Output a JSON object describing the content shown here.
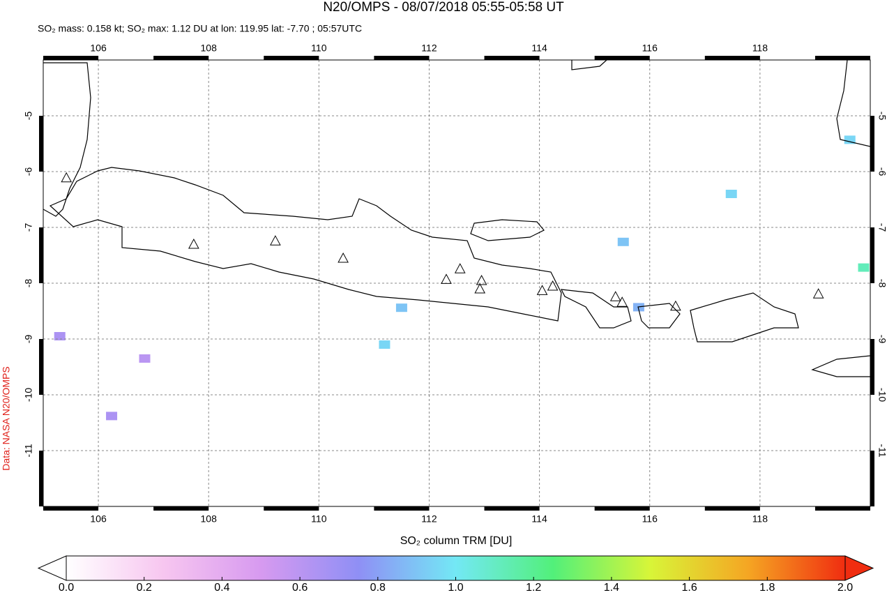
{
  "chart_data": {
    "type": "map",
    "title": "N20/OMPS - 08/07/2018 05:55-05:58 UT",
    "subtitle": "SO₂ mass: 0.158 kt; SO₂ max: 1.12 DU at lon: 119.95 lat: -7.70 ; 05:57UTC",
    "side_label": "Data: NASA N20/OMPS",
    "xlim": [
      105,
      120
    ],
    "ylim": [
      -12,
      -4
    ],
    "xticks": [
      106,
      108,
      110,
      112,
      114,
      116,
      118
    ],
    "yticks": [
      -5,
      -6,
      -7,
      -8,
      -9,
      -10,
      -11
    ],
    "grid": true,
    "volcanoes": [
      [
        105.42,
        -6.11
      ],
      [
        107.73,
        -7.3
      ],
      [
        109.21,
        -7.24
      ],
      [
        110.44,
        -7.55
      ],
      [
        112.31,
        -7.93
      ],
      [
        112.56,
        -7.74
      ],
      [
        112.95,
        -7.95
      ],
      [
        112.92,
        -8.1
      ],
      [
        114.05,
        -8.13
      ],
      [
        114.24,
        -8.05
      ],
      [
        115.38,
        -8.24
      ],
      [
        115.5,
        -8.34
      ],
      [
        116.47,
        -8.41
      ],
      [
        119.06,
        -8.19
      ]
    ],
    "pixels": {
      "lon": [
        119.63,
        117.48,
        115.52,
        119.88,
        111.5,
        111.19,
        115.8,
        105.3,
        106.84,
        106.24
      ],
      "lat": [
        -5.43,
        -6.4,
        -7.26,
        -7.72,
        -8.44,
        -9.1,
        -8.43,
        -8.95,
        -9.35,
        -10.38
      ],
      "values": [
        0.95,
        0.95,
        0.9,
        1.12,
        0.9,
        0.95,
        0.85,
        0.65,
        0.6,
        0.65
      ]
    },
    "colorbar": {
      "label": "SO₂ column TRM [DU]",
      "lim": [
        0,
        2
      ],
      "ticks": [
        {
          "value": 0,
          "label": "0.0"
        },
        0.2,
        0.4,
        0.6,
        0.8,
        {
          "value": 1,
          "label": "1.0"
        },
        1.2,
        1.4,
        1.6,
        1.8,
        {
          "value": 2,
          "label": "2.0"
        }
      ],
      "colors": [
        "#ffffff",
        "#f7c6f0",
        "#d79af0",
        "#8f8ff5",
        "#73e8f5",
        "#52f07a",
        "#d8f538",
        "#f5a623",
        "#f02d10"
      ]
    }
  }
}
